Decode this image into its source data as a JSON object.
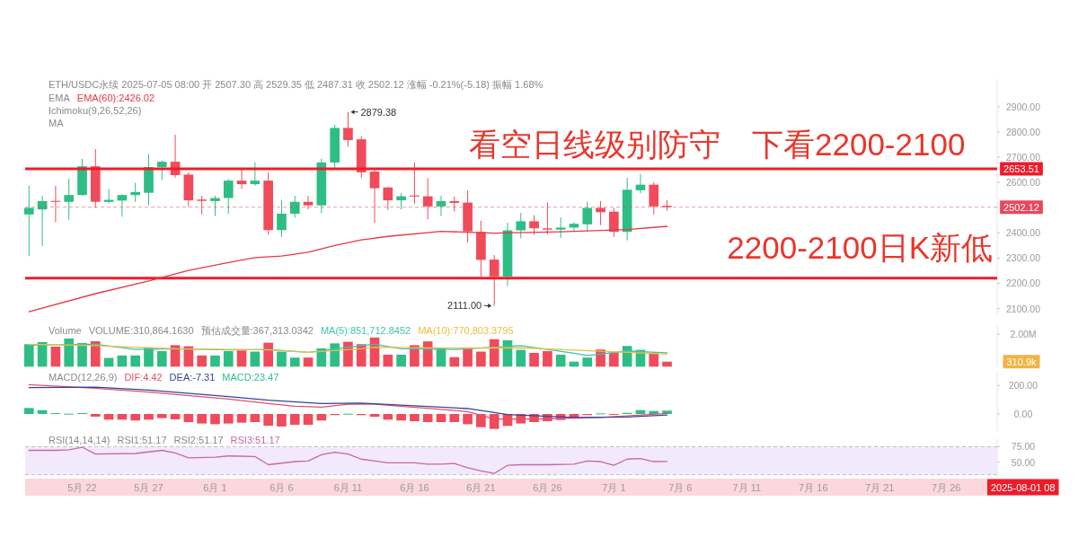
{
  "chart_data": [
    {
      "type": "candlestick",
      "title": "ETH/USDC永续 2025-07-05 08:00 开 2507.30 高 2529.35 低 2487.31 收 2502.12 涨幅 -0.21%(-5.18) 振幅 1.68%",
      "x": [
        "2025-05-18",
        "2025-05-19",
        "2025-05-20",
        "2025-05-21",
        "2025-05-22",
        "2025-05-23",
        "2025-05-24",
        "2025-05-25",
        "2025-05-26",
        "2025-05-27",
        "2025-05-28",
        "2025-05-29",
        "2025-05-30",
        "2025-05-31",
        "2025-06-01",
        "2025-06-02",
        "2025-06-03",
        "2025-06-04",
        "2025-06-05",
        "2025-06-06",
        "2025-06-07",
        "2025-06-08",
        "2025-06-09",
        "2025-06-10",
        "2025-06-11",
        "2025-06-12",
        "2025-06-13",
        "2025-06-14",
        "2025-06-15",
        "2025-06-16",
        "2025-06-17",
        "2025-06-18",
        "2025-06-19",
        "2025-06-20",
        "2025-06-21",
        "2025-06-22",
        "2025-06-23",
        "2025-06-24",
        "2025-06-25",
        "2025-06-26",
        "2025-06-27",
        "2025-06-28",
        "2025-06-29",
        "2025-06-30",
        "2025-07-01",
        "2025-07-02",
        "2025-07-03",
        "2025-07-04",
        "2025-07-05"
      ],
      "ohlc": [
        [
          2473,
          2587,
          2308,
          2499
        ],
        [
          2493,
          2547,
          2348,
          2526
        ],
        [
          2527,
          2587,
          2442,
          2523
        ],
        [
          2523,
          2615,
          2452,
          2550
        ],
        [
          2550,
          2693,
          2547,
          2664
        ],
        [
          2664,
          2732,
          2499,
          2523
        ],
        [
          2523,
          2574,
          2517,
          2531
        ],
        [
          2528,
          2553,
          2464,
          2550
        ],
        [
          2550,
          2599,
          2523,
          2562
        ],
        [
          2559,
          2712,
          2509,
          2661
        ],
        [
          2661,
          2687,
          2609,
          2682
        ],
        [
          2682,
          2789,
          2619,
          2629
        ],
        [
          2631,
          2640,
          2505,
          2529
        ],
        [
          2532,
          2547,
          2473,
          2527
        ],
        [
          2526,
          2547,
          2467,
          2538
        ],
        [
          2538,
          2613,
          2476,
          2607
        ],
        [
          2607,
          2655,
          2575,
          2593
        ],
        [
          2593,
          2679,
          2587,
          2607
        ],
        [
          2607,
          2640,
          2392,
          2411
        ],
        [
          2411,
          2529,
          2384,
          2476
        ],
        [
          2476,
          2547,
          2460,
          2523
        ],
        [
          2523,
          2547,
          2493,
          2509
        ],
        [
          2509,
          2694,
          2478,
          2679
        ],
        [
          2679,
          2828,
          2657,
          2816
        ],
        [
          2816,
          2879.38,
          2742,
          2768
        ],
        [
          2771,
          2784,
          2617,
          2640
        ],
        [
          2643,
          2649,
          2440,
          2577
        ],
        [
          2580,
          2582,
          2491,
          2529
        ],
        [
          2529,
          2557,
          2493,
          2545
        ],
        [
          2548,
          2679,
          2515,
          2544
        ],
        [
          2545,
          2617,
          2454,
          2505
        ],
        [
          2505,
          2547,
          2467,
          2526
        ],
        [
          2526,
          2544,
          2485,
          2519
        ],
        [
          2520,
          2569,
          2362,
          2406
        ],
        [
          2404,
          2448,
          2227,
          2293
        ],
        [
          2294,
          2312,
          2111.0,
          2227
        ],
        [
          2227,
          2440,
          2189,
          2410
        ],
        [
          2410,
          2479,
          2378,
          2446
        ],
        [
          2446,
          2470,
          2392,
          2418
        ],
        [
          2418,
          2521,
          2394,
          2413
        ],
        [
          2413,
          2461,
          2380,
          2421
        ],
        [
          2421,
          2442,
          2406,
          2436
        ],
        [
          2434,
          2523,
          2406,
          2499
        ],
        [
          2499,
          2526,
          2431,
          2482
        ],
        [
          2484,
          2499,
          2384,
          2404
        ],
        [
          2404,
          2619,
          2370,
          2571
        ],
        [
          2569,
          2634,
          2557,
          2591
        ],
        [
          2591,
          2601,
          2473,
          2505
        ],
        [
          2507.3,
          2529.35,
          2487.31,
          2502.12
        ]
      ],
      "colors": [
        "#2ebd85",
        "#2ebd85",
        "#f04b5b",
        "#2ebd85",
        "#2ebd85",
        "#f04b5b",
        "#2ebd85",
        "#2ebd85",
        "#2ebd85",
        "#2ebd85",
        "#2ebd85",
        "#f04b5b",
        "#f04b5b",
        "#f04b5b",
        "#2ebd85",
        "#2ebd85",
        "#f04b5b",
        "#2ebd85",
        "#f04b5b",
        "#2ebd85",
        "#2ebd85",
        "#f04b5b",
        "#2ebd85",
        "#2ebd85",
        "#f04b5b",
        "#f04b5b",
        "#f04b5b",
        "#f04b5b",
        "#2ebd85",
        "#f04b5b",
        "#f04b5b",
        "#2ebd85",
        "#f04b5b",
        "#f04b5b",
        "#f04b5b",
        "#f04b5b",
        "#2ebd85",
        "#2ebd85",
        "#f04b5b",
        "#f04b5b",
        "#2ebd85",
        "#2ebd85",
        "#2ebd85",
        "#f04b5b",
        "#f04b5b",
        "#2ebd85",
        "#2ebd85",
        "#f04b5b",
        "#f04b5b"
      ],
      "series": [
        {
          "type": "line",
          "name": "EMA(60):2426.02",
          "color": "#e53945",
          "x": [
            "2025-05-18",
            "2025-05-23",
            "2025-05-27",
            "2025-05-30",
            "2025-06-02",
            "2025-06-04",
            "2025-06-06",
            "2025-06-08",
            "2025-06-10",
            "2025-06-12",
            "2025-06-14",
            "2025-06-18",
            "2025-06-22",
            "2025-06-27",
            "2025-07-02",
            "2025-07-05"
          ],
          "values": [
            2087,
            2159,
            2209,
            2251,
            2282,
            2302,
            2308,
            2323,
            2350,
            2372,
            2386,
            2406,
            2399,
            2404,
            2413,
            2426.02
          ]
        }
      ],
      "xlim": [
        "2025-05-17T17:00",
        "2025-07-29T20:00"
      ],
      "ylim": [
        2070,
        3010
      ],
      "yticks": [
        {
          "value": 2100,
          "label": "2100.00"
        },
        {
          "value": 2200,
          "label": "2200.00"
        },
        {
          "value": 2300,
          "label": "2300.00"
        },
        {
          "value": 2400,
          "label": "2400.00"
        },
        {
          "value": 2600,
          "label": "2600.00"
        },
        {
          "value": 2700,
          "label": "2700.00"
        },
        {
          "value": 2800,
          "label": "2800.00"
        },
        {
          "value": 2900,
          "label": "2900.00"
        }
      ],
      "ref_lines": [
        {
          "axis": "y",
          "value": 2653.51,
          "label": "2653.51",
          "color": "#ee1c2a"
        },
        {
          "axis": "y",
          "value": 2220,
          "color": "#ee1c2a"
        },
        {
          "axis": "y",
          "value": 2502.12,
          "label": "2502.12",
          "color": "#e8485f",
          "line_style": "dashed"
        }
      ],
      "annotations": [
        "EMA",
        "Ichimoku(9,26,52,26)",
        "MA",
        "看空日线级别防守　下看2200-2100",
        "2200-2100日K新低",
        {
          "text": "2879.38",
          "x": "2025-06-11",
          "y": 2879.38
        },
        {
          "text": "2111.00",
          "x": "2025-06-22",
          "y": 2111.0
        }
      ],
      "legend": "top left",
      "tick_labels": "y"
    },
    {
      "type": "bar",
      "title": "Volume",
      "x": [
        "2025-05-18",
        "2025-05-19",
        "2025-05-20",
        "2025-05-21",
        "2025-05-22",
        "2025-05-23",
        "2025-05-24",
        "2025-05-25",
        "2025-05-26",
        "2025-05-27",
        "2025-05-28",
        "2025-05-29",
        "2025-05-30",
        "2025-05-31",
        "2025-06-01",
        "2025-06-02",
        "2025-06-03",
        "2025-06-04",
        "2025-06-05",
        "2025-06-06",
        "2025-06-07",
        "2025-06-08",
        "2025-06-09",
        "2025-06-10",
        "2025-06-11",
        "2025-06-12",
        "2025-06-13",
        "2025-06-14",
        "2025-06-15",
        "2025-06-16",
        "2025-06-17",
        "2025-06-18",
        "2025-06-19",
        "2025-06-20",
        "2025-06-21",
        "2025-06-22",
        "2025-06-23",
        "2025-06-24",
        "2025-06-25",
        "2025-06-26",
        "2025-06-27",
        "2025-06-28",
        "2025-06-29",
        "2025-06-30",
        "2025-07-01",
        "2025-07-02",
        "2025-07-03",
        "2025-07-04",
        "2025-07-05"
      ],
      "series": [
        {
          "type": "bar",
          "colors": [
            "#2ebd85",
            "#2ebd85",
            "#f04b5b",
            "#2ebd85",
            "#2ebd85",
            "#f04b5b",
            "#2ebd85",
            "#2ebd85",
            "#2ebd85",
            "#2ebd85",
            "#2ebd85",
            "#f04b5b",
            "#f04b5b",
            "#f04b5b",
            "#2ebd85",
            "#2ebd85",
            "#f04b5b",
            "#2ebd85",
            "#f04b5b",
            "#2ebd85",
            "#2ebd85",
            "#f04b5b",
            "#2ebd85",
            "#2ebd85",
            "#f04b5b",
            "#f04b5b",
            "#f04b5b",
            "#f04b5b",
            "#2ebd85",
            "#f04b5b",
            "#f04b5b",
            "#2ebd85",
            "#f04b5b",
            "#f04b5b",
            "#f04b5b",
            "#f04b5b",
            "#2ebd85",
            "#2ebd85",
            "#f04b5b",
            "#f04b5b",
            "#2ebd85",
            "#2ebd85",
            "#2ebd85",
            "#f04b5b",
            "#f04b5b",
            "#2ebd85",
            "#2ebd85",
            "#f04b5b",
            "#f04b5b"
          ],
          "values": [
            1390000,
            1520000,
            1240000,
            1740000,
            1460000,
            1570000,
            540000,
            690000,
            690000,
            1190000,
            960000,
            1330000,
            1260000,
            690000,
            690000,
            960000,
            1000000,
            930000,
            1480000,
            930000,
            560000,
            560000,
            1130000,
            1440000,
            1540000,
            1390000,
            1800000,
            740000,
            740000,
            1330000,
            1560000,
            1130000,
            590000,
            1190000,
            930000,
            1700000,
            1630000,
            1040000,
            850000,
            960000,
            740000,
            310000,
            560000,
            1060000,
            870000,
            1280000,
            1040000,
            830000,
            310864.163
          ]
        },
        {
          "type": "line",
          "name": "MA(5):851,712.8452",
          "color": "#3cc4b0",
          "x": [
            "2025-05-18",
            "2025-05-23",
            "2025-05-26",
            "2025-05-29",
            "2025-06-02",
            "2025-06-05",
            "2025-06-08",
            "2025-06-12",
            "2025-06-13",
            "2025-06-15",
            "2025-06-19",
            "2025-06-24",
            "2025-06-28",
            "2025-06-29",
            "2025-07-02",
            "2025-07-05"
          ],
          "values": [
            1330000,
            1390000,
            1060000,
            1110000,
            1040000,
            1060000,
            890000,
            1300000,
            1390000,
            1110000,
            1060000,
            1300000,
            830000,
            690000,
            960000,
            851712.8452
          ]
        },
        {
          "type": "line",
          "name": "MA(10):770,803.3795",
          "color": "#e9c046",
          "x": [
            "2025-05-18",
            "2025-05-23",
            "2025-05-29",
            "2025-06-05",
            "2025-06-08",
            "2025-06-12",
            "2025-06-13",
            "2025-06-19",
            "2025-06-24",
            "2025-06-28",
            "2025-07-02",
            "2025-07-05"
          ],
          "values": [
            1390000,
            1300000,
            1110000,
            1040000,
            890000,
            1110000,
            1200000,
            1150000,
            1170000,
            1020000,
            890000,
            770803.3795
          ]
        }
      ],
      "xlim": [
        "2025-05-17T17:00",
        "2025-07-29T20:00"
      ],
      "ylim": [
        0,
        2600000
      ],
      "yticks": [
        {
          "value": 2000000,
          "label": "2.00M"
        }
      ],
      "annotations": [
        "VOLUME:310,864.1630",
        "预估成交量:367,313.0342",
        "310.9k"
      ],
      "legend": "top left",
      "tick_labels": "y"
    },
    {
      "type": "bar",
      "title": "MACD(12,26,9)",
      "x": [
        "2025-05-18",
        "2025-05-19",
        "2025-05-20",
        "2025-05-21",
        "2025-05-22",
        "2025-05-23",
        "2025-05-24",
        "2025-05-25",
        "2025-05-26",
        "2025-05-27",
        "2025-05-28",
        "2025-05-29",
        "2025-05-30",
        "2025-05-31",
        "2025-06-01",
        "2025-06-02",
        "2025-06-03",
        "2025-06-04",
        "2025-06-05",
        "2025-06-06",
        "2025-06-07",
        "2025-06-08",
        "2025-06-09",
        "2025-06-10",
        "2025-06-11",
        "2025-06-12",
        "2025-06-13",
        "2025-06-14",
        "2025-06-15",
        "2025-06-16",
        "2025-06-17",
        "2025-06-18",
        "2025-06-19",
        "2025-06-20",
        "2025-06-21",
        "2025-06-22",
        "2025-06-23",
        "2025-06-24",
        "2025-06-25",
        "2025-06-26",
        "2025-06-27",
        "2025-06-28",
        "2025-06-29",
        "2025-06-30",
        "2025-07-01",
        "2025-07-02",
        "2025-07-03",
        "2025-07-04",
        "2025-07-05"
      ],
      "series": [
        {
          "type": "line",
          "name": "DIF:4.42",
          "color": "#e2506a",
          "x": [
            "2025-05-18",
            "2025-05-23",
            "2025-05-27",
            "2025-06-02",
            "2025-06-05",
            "2025-06-07",
            "2025-06-09",
            "2025-06-11",
            "2025-06-13",
            "2025-06-20",
            "2025-06-22",
            "2025-06-25",
            "2025-06-30",
            "2025-07-05"
          ],
          "values": [
            206,
            181,
            154,
            105,
            74,
            55,
            48,
            69,
            69,
            17,
            -36,
            -36,
            -25,
            4.42
          ]
        },
        {
          "type": "line",
          "name": "DEA:-7.31",
          "color": "#35449a",
          "x": [
            "2025-05-18",
            "2025-05-23",
            "2025-05-27",
            "2025-06-02",
            "2025-06-05",
            "2025-06-09",
            "2025-06-12",
            "2025-06-20",
            "2025-06-23",
            "2025-06-28",
            "2025-07-02",
            "2025-07-05"
          ],
          "values": [
            185,
            189,
            168,
            122,
            97,
            74,
            76,
            38,
            -4,
            -25,
            -21,
            -7.31
          ]
        },
        {
          "type": "bar",
          "name": "MACD:23.47",
          "color": "#2ebd85",
          "colors": [
            "#2ebd85",
            "#2ebd85",
            "#2ebd85",
            "#2ebd85",
            "#2ebd85",
            "#f04b5b",
            "#f04b5b",
            "#f04b5b",
            "#f04b5b",
            "#f04b5b",
            "#f04b5b",
            "#f04b5b",
            "#f04b5b",
            "#f04b5b",
            "#f04b5b",
            "#f04b5b",
            "#f04b5b",
            "#f04b5b",
            "#f04b5b",
            "#f04b5b",
            "#f04b5b",
            "#f04b5b",
            "#f04b5b",
            "#f04b5b",
            "#2ebd85",
            "#f04b5b",
            "#f04b5b",
            "#f04b5b",
            "#f04b5b",
            "#f04b5b",
            "#f04b5b",
            "#f04b5b",
            "#f04b5b",
            "#f04b5b",
            "#f04b5b",
            "#f04b5b",
            "#f04b5b",
            "#f04b5b",
            "#f04b5b",
            "#f04b5b",
            "#f04b5b",
            "#f04b5b",
            "#f04b5b",
            "#2ebd85",
            "#f04b5b",
            "#2ebd85",
            "#2ebd85",
            "#2ebd85",
            "#2ebd85"
          ],
          "values": [
            42,
            27,
            6,
            2,
            6,
            -19,
            -40,
            -40,
            -46,
            -40,
            -29,
            -38,
            -57,
            -67,
            -72,
            -67,
            -61,
            -57,
            -82,
            -88,
            -76,
            -76,
            -46,
            -8,
            2,
            -8,
            -20,
            -40,
            -46,
            -51,
            -57,
            -57,
            -57,
            -72,
            -93,
            -105,
            -84,
            -67,
            -57,
            -51,
            -42,
            -32,
            -8,
            4,
            -4,
            8,
            27,
            21,
            23.47
          ]
        }
      ],
      "xlim": [
        "2025-05-17T17:00",
        "2025-07-29T20:00"
      ],
      "ylim": [
        -120,
        300
      ],
      "yticks": [
        {
          "value": 0,
          "label": "0.00"
        },
        {
          "value": 200,
          "label": "200.00"
        }
      ],
      "legend": "top left",
      "tick_labels": "y"
    },
    {
      "type": "line",
      "title": "RSI(14,14,14)",
      "series": [
        {
          "name": "RSI3:51.17",
          "color": "#c468a8",
          "x": [
            "2025-05-18",
            "2025-05-20",
            "2025-05-21",
            "2025-05-22",
            "2025-05-23",
            "2025-05-26",
            "2025-05-28",
            "2025-05-29",
            "2025-05-30",
            "2025-06-01",
            "2025-06-02",
            "2025-06-04",
            "2025-06-05",
            "2025-06-07",
            "2025-06-08",
            "2025-06-09",
            "2025-06-10",
            "2025-06-11",
            "2025-06-12",
            "2025-06-13",
            "2025-06-14",
            "2025-06-16",
            "2025-06-17",
            "2025-06-18",
            "2025-06-19",
            "2025-06-20",
            "2025-06-21",
            "2025-06-22",
            "2025-06-23",
            "2025-06-24",
            "2025-06-26",
            "2025-06-28",
            "2025-06-29",
            "2025-06-30",
            "2025-07-01",
            "2025-07-02",
            "2025-07-03",
            "2025-07-04",
            "2025-07-05"
          ],
          "values": [
            69,
            69,
            70,
            74,
            63,
            64,
            69,
            65,
            57,
            58,
            60,
            59,
            46,
            51,
            52,
            62,
            66,
            63,
            55,
            52,
            49,
            49,
            47,
            47,
            48,
            41,
            36,
            32,
            45,
            46,
            46,
            47,
            52,
            51,
            45,
            55,
            56,
            51,
            51.17
          ]
        }
      ],
      "xlim": [
        "2025-05-17T17:00",
        "2025-07-29T20:00"
      ],
      "xticks": [
        {
          "value": "2025-05-22",
          "label": "5月 22"
        },
        {
          "value": "2025-05-27",
          "label": "5月 27"
        },
        {
          "value": "2025-06-01",
          "label": "6月 1"
        },
        {
          "value": "2025-06-06",
          "label": "6月 6"
        },
        {
          "value": "2025-06-11",
          "label": "6月 11"
        },
        {
          "value": "2025-06-16",
          "label": "6月 16"
        },
        {
          "value": "2025-06-21",
          "label": "6月 21"
        },
        {
          "value": "2025-06-26",
          "label": "6月 26"
        },
        {
          "value": "2025-07-01",
          "label": "7月 1"
        },
        {
          "value": "2025-07-06",
          "label": "7月 6"
        },
        {
          "value": "2025-07-11",
          "label": "7月 11"
        },
        {
          "value": "2025-07-16",
          "label": "7月 16"
        },
        {
          "value": "2025-07-21",
          "label": "7月 21"
        },
        {
          "value": "2025-07-26",
          "label": "7月 26"
        }
      ],
      "ylim": [
        28,
        88
      ],
      "yticks": [
        {
          "value": 50,
          "label": "50.00"
        },
        {
          "value": 75,
          "label": "75.00"
        }
      ],
      "bands": [
        {
          "axis": "y",
          "from": 30,
          "to": 75,
          "color": "#f3e9fc"
        }
      ],
      "annotations": [
        "RSI1:51.17",
        "RSI2:51.17",
        "2025-08-01 08"
      ],
      "legend": "top left"
    }
  ]
}
